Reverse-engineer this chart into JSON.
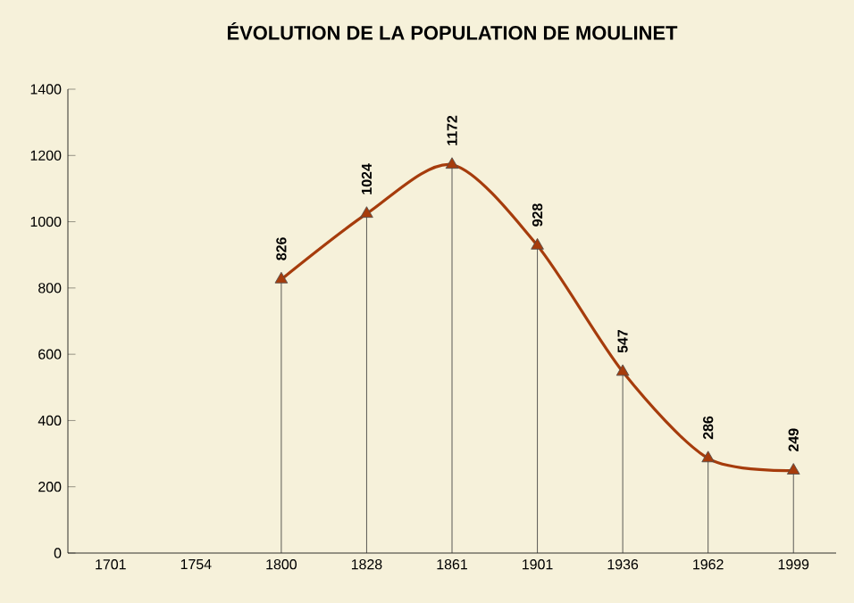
{
  "chart_data": {
    "type": "lollipop",
    "title": "ÉVOLUTION DE LA POPULATION DE MOULINET",
    "categories": [
      "1701",
      "1754",
      "1800",
      "1828",
      "1861",
      "1901",
      "1936",
      "1962",
      "1999"
    ],
    "series": [
      {
        "type": "line",
        "color": "#a63c0c",
        "marker": "none",
        "values": [
          null,
          null,
          826,
          1024,
          1172,
          928,
          547,
          286,
          249
        ]
      },
      {
        "color": "#a63c0c",
        "values": [
          null,
          null,
          826,
          1024,
          1172,
          928,
          547,
          286,
          249
        ],
        "value_labels": [
          null,
          null,
          "826",
          "1024",
          "1172",
          "928",
          "547",
          "286",
          "249"
        ]
      }
    ],
    "ylim": [
      0,
      1400
    ],
    "yticks": [
      0,
      200,
      400,
      600,
      800,
      1000,
      1200,
      1400
    ],
    "marker": "triangle"
  }
}
